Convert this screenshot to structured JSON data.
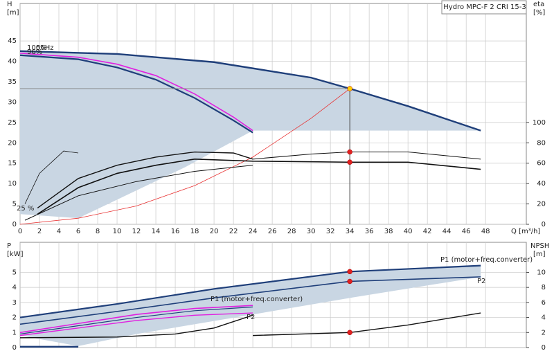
{
  "chart_data": [
    {
      "type": "line",
      "title": "Hydro MPC-F 2 CRI 15-3",
      "ylabel": "H",
      "yunit": "[m]",
      "y2label": "eta",
      "y2unit": "[%]",
      "xlabel": "Q [m³/h]",
      "xlim": [
        0,
        52.2
      ],
      "ylim": [
        0,
        54.2
      ],
      "y2lim": [
        0,
        216.8
      ],
      "xticks": [
        0,
        2,
        4,
        6,
        8,
        10,
        12,
        14,
        16,
        18,
        20,
        22,
        24,
        26,
        28,
        30,
        32,
        34,
        36,
        38,
        40,
        42,
        44,
        46,
        48
      ],
      "yticks": [
        0,
        5,
        10,
        15,
        20,
        25,
        30,
        35,
        40,
        45
      ],
      "y2ticks": [
        0,
        20,
        40,
        60,
        80,
        100
      ],
      "annotations": [
        "100%",
        "50Hz",
        "96%",
        "25 %"
      ],
      "series": [
        {
          "fill": "#c9d6e3",
          "x": [
            0,
            10,
            20,
            30,
            34,
            40,
            47.5,
            24,
            17,
            6,
            0
          ],
          "values": [
            42.5,
            41.8,
            39.8,
            36,
            33.3,
            29,
            23,
            23,
            14,
            1.5,
            2.5
          ]
        },
        {
          "color": "#1f3f7a",
          "width": 2.4,
          "x": [
            0,
            10,
            20,
            30,
            34,
            40,
            47.5
          ],
          "values": [
            42.5,
            41.8,
            39.8,
            36,
            33.3,
            29,
            23
          ]
        },
        {
          "color": "#1f3f7a",
          "width": 2.2,
          "x": [
            0,
            6,
            10,
            14,
            18,
            22,
            24
          ],
          "values": [
            41.5,
            40.5,
            38.5,
            35.5,
            31,
            25.5,
            22.5
          ]
        },
        {
          "color": "#e020e0",
          "width": 1.6,
          "x": [
            0,
            6,
            10,
            14,
            18,
            22,
            24
          ],
          "values": [
            42,
            41,
            39.3,
            36.5,
            32,
            26.3,
            23
          ]
        },
        {
          "color": "#e83030",
          "width": 0.8,
          "x": [
            0,
            6,
            12,
            18,
            24,
            30,
            34
          ],
          "values": [
            0,
            1.5,
            4.5,
            9.5,
            16.5,
            26,
            33.3
          ]
        },
        {
          "color": "#888888",
          "width": 1,
          "x": [
            0,
            34
          ],
          "values": [
            33.3,
            33.3
          ]
        },
        {
          "color": "#444444",
          "width": 1,
          "x": [
            34,
            34
          ],
          "values": [
            0,
            33.3
          ]
        },
        {
          "color": "#111111",
          "width": 1.6,
          "axis": "y2",
          "x": [
            1.8,
            6,
            10,
            14,
            18,
            24,
            34,
            40,
            47.5
          ],
          "values": [
            10,
            36,
            50,
            58,
            64,
            62,
            61,
            61,
            54
          ]
        },
        {
          "color": "#111111",
          "width": 1,
          "axis": "y2",
          "x": [
            24,
            30,
            34,
            40,
            47.5
          ],
          "values": [
            64,
            69,
            71,
            71,
            64
          ]
        },
        {
          "color": "#111111",
          "width": 1.4,
          "axis": "y2",
          "x": [
            1.8,
            6,
            10,
            14,
            18,
            22,
            24
          ],
          "values": [
            16,
            45,
            58,
            66,
            71,
            70,
            64
          ]
        },
        {
          "color": "#111111",
          "width": 0.8,
          "axis": "y2",
          "x": [
            0.5,
            2,
            4.5,
            6
          ],
          "values": [
            20,
            50,
            72,
            70
          ]
        },
        {
          "color": "#111111",
          "width": 1,
          "axis": "y2",
          "x": [
            0.5,
            6,
            12,
            18,
            24
          ],
          "values": [
            4,
            28,
            42,
            52,
            58
          ]
        }
      ],
      "points": [
        {
          "x": 34,
          "y": 33.3,
          "color": "#ffcc00"
        },
        {
          "x": 34,
          "y": 71,
          "axis": "y2",
          "color": "#e02020"
        },
        {
          "x": 34,
          "y": 61,
          "axis": "y2",
          "color": "#e02020"
        }
      ]
    },
    {
      "type": "line",
      "ylabel": "P",
      "yunit": "[kW]",
      "y2label": "NPSH",
      "y2unit": "[m]",
      "xlim": [
        0,
        52.2
      ],
      "ylim": [
        0,
        7
      ],
      "y2lim": [
        0,
        14
      ],
      "xticks": [
        0,
        2,
        4,
        6,
        8,
        10,
        12,
        14,
        16,
        18,
        20,
        22,
        24,
        26,
        28,
        30,
        32,
        34,
        36,
        38,
        40,
        42,
        44,
        46,
        48
      ],
      "yticks": [
        0,
        1,
        2,
        3,
        4,
        5
      ],
      "y2ticks": [
        0,
        2,
        4,
        6,
        8,
        10
      ],
      "annotations": [
        "P1 (motor+freq.converter)",
        "P2",
        "P1 (motor+freq.converter)",
        "P2"
      ],
      "series": [
        {
          "fill": "#c9d6e3",
          "x": [
            0,
            10,
            20,
            34,
            47.5,
            47.5,
            34,
            24,
            12,
            6,
            0
          ],
          "values": [
            2.0,
            2.9,
            3.9,
            5.05,
            5.45,
            4.7,
            3.3,
            2.2,
            0.9,
            0.1,
            0.8
          ]
        },
        {
          "color": "#1f3f7a",
          "width": 2.2,
          "x": [
            0,
            10,
            20,
            34,
            47.5
          ],
          "values": [
            2.0,
            2.9,
            3.9,
            5.05,
            5.45
          ]
        },
        {
          "color": "#1f3f7a",
          "width": 1.6,
          "x": [
            0,
            10,
            20,
            34,
            47.5
          ],
          "values": [
            1.55,
            2.4,
            3.3,
            4.4,
            4.7
          ]
        },
        {
          "color": "#e020e0",
          "width": 1.6,
          "x": [
            0,
            6,
            12,
            18,
            24
          ],
          "values": [
            1.0,
            1.6,
            2.2,
            2.6,
            2.8
          ]
        },
        {
          "color": "#e020e0",
          "width": 1.4,
          "x": [
            0,
            6,
            12,
            18,
            24
          ],
          "values": [
            0.8,
            1.3,
            1.8,
            2.15,
            2.3
          ]
        },
        {
          "color": "#1f3f7a",
          "width": 1.2,
          "x": [
            0,
            6,
            12,
            18,
            24
          ],
          "values": [
            0.9,
            1.45,
            2.0,
            2.45,
            2.7
          ]
        },
        {
          "color": "#1f3f7a",
          "width": 2.5,
          "x": [
            0,
            6
          ],
          "values": [
            0.05,
            0.05
          ]
        },
        {
          "color": "#111111",
          "width": 1.4,
          "axis": "y2",
          "x": [
            0,
            10,
            16,
            20,
            24
          ],
          "values": [
            1.3,
            1.4,
            1.8,
            2.6,
            4.3
          ]
        },
        {
          "color": "#111111",
          "width": 1.4,
          "axis": "y2",
          "x": [
            24,
            34,
            40,
            47.5
          ],
          "values": [
            1.6,
            2.0,
            3.0,
            4.6
          ]
        }
      ],
      "points": [
        {
          "x": 34,
          "y": 5.05,
          "color": "#e02020"
        },
        {
          "x": 34,
          "y": 4.4,
          "color": "#e02020"
        },
        {
          "x": 34,
          "y": 2.0,
          "axis": "y2",
          "color": "#e02020"
        }
      ]
    }
  ]
}
